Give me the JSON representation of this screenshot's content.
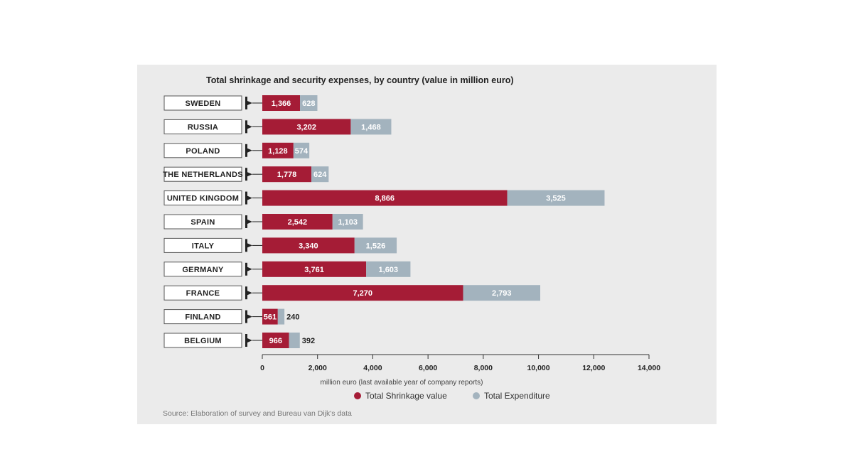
{
  "chart_data": {
    "type": "bar",
    "orientation": "horizontal",
    "stacked": true,
    "title": "Total shrinkage and security expenses, by country (value in million euro)",
    "categories": [
      "SWEDEN",
      "RUSSIA",
      "POLAND",
      "THE NETHERLANDS",
      "UNITED KINGDOM",
      "SPAIN",
      "ITALY",
      "GERMANY",
      "FRANCE",
      "FINLAND",
      "BELGIUM"
    ],
    "series": [
      {
        "name": "Total Shrinkage value",
        "color": "#a51c36",
        "values": [
          1366,
          3202,
          1128,
          1778,
          8866,
          2542,
          3340,
          3761,
          7270,
          561,
          966
        ],
        "labels": [
          "1,366",
          "3,202",
          "1,128",
          "1,778",
          "8,866",
          "2,542",
          "3,340",
          "3,761",
          "7,270",
          "561",
          "966"
        ]
      },
      {
        "name": "Total Expenditure",
        "color": "#a3b3be",
        "values": [
          628,
          1468,
          574,
          624,
          3525,
          1103,
          1526,
          1603,
          2793,
          240,
          392
        ],
        "labels": [
          "628",
          "1,468",
          "574",
          "624",
          "3,525",
          "1,103",
          "1,526",
          "1,603",
          "2,793",
          "240",
          "392"
        ]
      }
    ],
    "xlim": [
      0,
      14000
    ],
    "xticks": [
      0,
      2000,
      4000,
      6000,
      8000,
      10000,
      12000,
      14000
    ],
    "xtick_labels": [
      "0",
      "2,000",
      "4,000",
      "6,000",
      "8,000",
      "10,000",
      "12,000",
      "14,000"
    ],
    "xlabel": "million euro (last available year of company reports)",
    "legend_position": "bottom",
    "source": "Source: Elaboration of survey and Bureau van Dijk's data"
  }
}
